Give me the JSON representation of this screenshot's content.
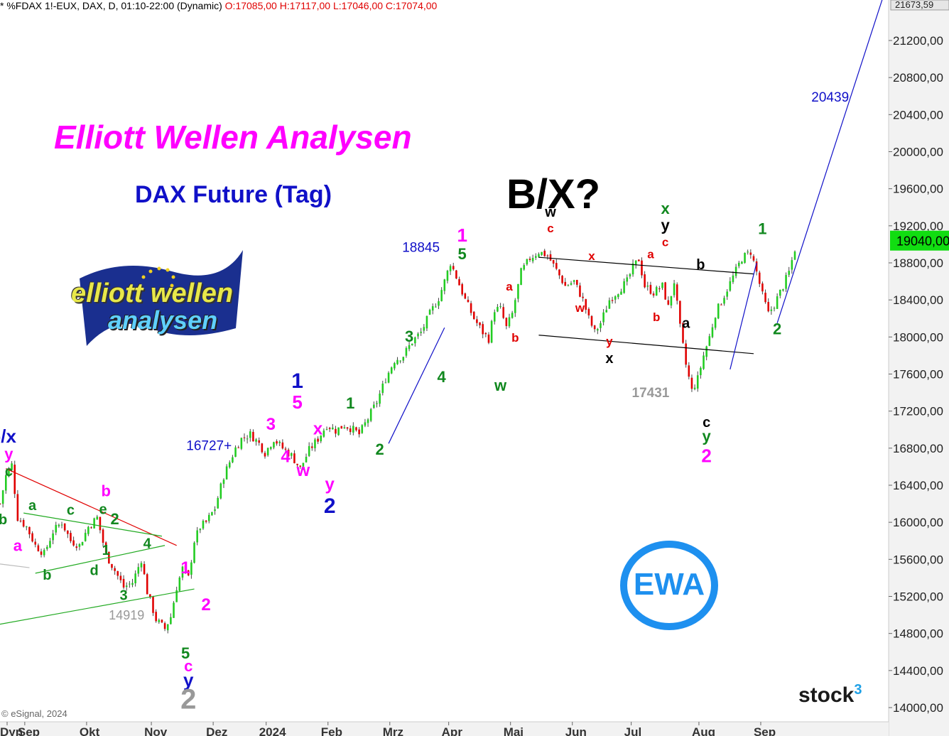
{
  "header": {
    "symbol_text": "* %FDAX 1!-EUX, DAX, D, 01:10-22:00 (Dynamic)",
    "ohlc_text": "O:17085,00 H:17117,00 L:17046,00 C:17074,00"
  },
  "title": "Elliott Wellen Analysen",
  "subtitle": "DAX Future (Tag)",
  "big_label": "B/X?",
  "logo": {
    "line1": "elliott wellen",
    "line2": "analysen"
  },
  "badge": {
    "text": "EWA",
    "color": "#1e90ef"
  },
  "brand": {
    "name": "stock",
    "sup": "3"
  },
  "copyright": "© eSignal, 2024",
  "colors": {
    "up": "#22cc22",
    "down": "#e00000",
    "price_tag_bg": "#11dd11",
    "pink": "#ff00ff",
    "green": "#11881f",
    "blue": "#1010c8",
    "red": "#e00000",
    "gray": "#999999",
    "black": "#000000"
  },
  "chart_data": {
    "type": "candlestick",
    "title": "DAX Future (Tag)",
    "y_axis": {
      "min": 14000,
      "max": 21800,
      "ticks": [
        14000,
        14400,
        14800,
        15200,
        15600,
        16000,
        16400,
        16800,
        17200,
        17600,
        18000,
        18400,
        18800,
        19200,
        19600,
        20000,
        20400,
        20800,
        21200
      ],
      "tick_labels": [
        "14000,00",
        "14400,00",
        "14800,00",
        "15200,00",
        "15600,00",
        "16000,00",
        "16400,00",
        "16800,00",
        "17200,00",
        "17600,00",
        "18000,00",
        "18400,00",
        "18800,00",
        "19200,00",
        "19600,00",
        "20000,00",
        "20400,00",
        "20800,00",
        "21200,00"
      ],
      "top_label": {
        "value": 21673.59,
        "text": "21673,59"
      },
      "last_price": {
        "value": 19040,
        "text": "19040,00"
      }
    },
    "x_axis": {
      "months": [
        {
          "label": "Dyn",
          "t": 0
        },
        {
          "label": "Sep",
          "t": 6
        },
        {
          "label": "Okt",
          "t": 27
        },
        {
          "label": "Nov",
          "t": 49
        },
        {
          "label": "Dez",
          "t": 70
        },
        {
          "label": "2024",
          "t": 88
        },
        {
          "label": "Feb",
          "t": 109
        },
        {
          "label": "Mrz",
          "t": 130
        },
        {
          "label": "Apr",
          "t": 150
        },
        {
          "label": "Mai",
          "t": 171
        },
        {
          "label": "Jun",
          "t": 192
        },
        {
          "label": "Jul",
          "t": 212
        },
        {
          "label": "Aug",
          "t": 235
        },
        {
          "label": "Sep",
          "t": 256
        }
      ]
    },
    "price_path": [
      [
        0,
        16200
      ],
      [
        2,
        16500
      ],
      [
        4,
        16620
      ],
      [
        6,
        16050
      ],
      [
        9,
        15950
      ],
      [
        12,
        15750
      ],
      [
        15,
        15660
      ],
      [
        18,
        15900
      ],
      [
        21,
        16000
      ],
      [
        24,
        15800
      ],
      [
        27,
        15750
      ],
      [
        30,
        15950
      ],
      [
        33,
        16050
      ],
      [
        36,
        15650
      ],
      [
        39,
        15480
      ],
      [
        42,
        15300
      ],
      [
        45,
        15350
      ],
      [
        48,
        15600
      ],
      [
        50,
        15250
      ],
      [
        53,
        14950
      ],
      [
        56,
        14850
      ],
      [
        58,
        14980
      ],
      [
        60,
        15300
      ],
      [
        62,
        15500
      ],
      [
        64,
        15400
      ],
      [
        66,
        15800
      ],
      [
        68,
        15950
      ],
      [
        70,
        16000
      ],
      [
        73,
        16150
      ],
      [
        76,
        16500
      ],
      [
        78,
        16650
      ],
      [
        80,
        16800
      ],
      [
        82,
        16900
      ],
      [
        85,
        16950
      ],
      [
        88,
        16850
      ],
      [
        90,
        16750
      ],
      [
        93,
        16900
      ],
      [
        96,
        16800
      ],
      [
        99,
        16720
      ],
      [
        102,
        16580
      ],
      [
        105,
        16780
      ],
      [
        108,
        16900
      ],
      [
        111,
        17050
      ],
      [
        114,
        16990
      ],
      [
        117,
        17050
      ],
      [
        120,
        17000
      ],
      [
        122,
        16950
      ],
      [
        125,
        17120
      ],
      [
        128,
        17300
      ],
      [
        131,
        17550
      ],
      [
        134,
        17750
      ],
      [
        137,
        17800
      ],
      [
        140,
        17950
      ],
      [
        143,
        18050
      ],
      [
        146,
        18250
      ],
      [
        149,
        18420
      ],
      [
        151,
        18600
      ],
      [
        153,
        18800
      ],
      [
        155,
        18650
      ],
      [
        158,
        18400
      ],
      [
        161,
        18200
      ],
      [
        164,
        18050
      ],
      [
        166,
        17980
      ],
      [
        168,
        18300
      ],
      [
        170,
        18300
      ],
      [
        172,
        18100
      ],
      [
        174,
        18250
      ],
      [
        177,
        18700
      ],
      [
        180,
        18850
      ],
      [
        183,
        18920
      ],
      [
        186,
        18880
      ],
      [
        189,
        18720
      ],
      [
        192,
        18550
      ],
      [
        195,
        18600
      ],
      [
        198,
        18400
      ],
      [
        200,
        18200
      ],
      [
        202,
        18050
      ],
      [
        204,
        18150
      ],
      [
        207,
        18400
      ],
      [
        210,
        18500
      ],
      [
        213,
        18600
      ],
      [
        215,
        18750
      ],
      [
        217,
        18840
      ],
      [
        219,
        18550
      ],
      [
        222,
        18480
      ],
      [
        225,
        18550
      ],
      [
        227,
        18320
      ],
      [
        229,
        18600
      ],
      [
        231,
        18100
      ],
      [
        233,
        17700
      ],
      [
        235,
        17420
      ],
      [
        237,
        17550
      ],
      [
        239,
        17800
      ],
      [
        241,
        18000
      ],
      [
        243,
        18250
      ],
      [
        246,
        18450
      ],
      [
        249,
        18650
      ],
      [
        252,
        18850
      ],
      [
        255,
        18920
      ],
      [
        257,
        18700
      ],
      [
        259,
        18450
      ],
      [
        261,
        18250
      ],
      [
        263,
        18350
      ],
      [
        266,
        18550
      ],
      [
        268,
        18700
      ],
      [
        270,
        18950
      ]
    ],
    "trendlines": [
      {
        "t1": 2,
        "p1": 16580,
        "t2": 60,
        "p2": 15750,
        "color": "#e00000"
      },
      {
        "t1": 8,
        "p1": 16100,
        "t2": 55,
        "p2": 15850,
        "color": "#22aa22"
      },
      {
        "t1": 12,
        "p1": 15450,
        "t2": 56,
        "p2": 15750,
        "color": "#22aa22"
      },
      {
        "t1": 0,
        "p1": 14900,
        "t2": 66,
        "p2": 15280,
        "color": "#22aa22"
      },
      {
        "t1": 0,
        "p1": 15550,
        "t2": 10,
        "p2": 15510,
        "color": "#bbbbbb"
      },
      {
        "t1": 132,
        "p1": 16850,
        "t2": 151,
        "p2": 18100,
        "color": "#1010c8"
      },
      {
        "t1": 183,
        "p1": 18860,
        "t2": 256,
        "p2": 18680,
        "color": "#000000"
      },
      {
        "t1": 183,
        "p1": 18020,
        "t2": 256,
        "p2": 17820,
        "color": "#000000"
      },
      {
        "t1": 248,
        "p1": 17650,
        "t2": 257,
        "p2": 18800,
        "color": "#1010c8"
      },
      {
        "t1": 264,
        "p1": 18150,
        "t2": 300,
        "p2": 21673.59,
        "color": "#1010c8"
      }
    ],
    "annotations": [
      {
        "text": "b/x",
        "t": 1,
        "p": 16860,
        "color": "#1010c8",
        "size": 26
      },
      {
        "text": "y",
        "t": 3,
        "p": 16680,
        "color": "#ff00ff",
        "size": 22
      },
      {
        "text": "c",
        "t": 3,
        "p": 16500,
        "color": "#11881f",
        "size": 20
      },
      {
        "text": "b",
        "t": 1,
        "p": 15980,
        "color": "#11881f",
        "size": 20
      },
      {
        "text": "a",
        "t": 6,
        "p": 15690,
        "color": "#ff00ff",
        "size": 22
      },
      {
        "text": "a",
        "t": 11,
        "p": 16130,
        "color": "#11881f",
        "size": 20
      },
      {
        "text": "b",
        "t": 16,
        "p": 15380,
        "color": "#11881f",
        "size": 20
      },
      {
        "text": "c",
        "t": 24,
        "p": 16080,
        "color": "#11881f",
        "size": 20
      },
      {
        "text": "d",
        "t": 32,
        "p": 15430,
        "color": "#11881f",
        "size": 20
      },
      {
        "text": "b",
        "t": 36,
        "p": 16280,
        "color": "#ff00ff",
        "size": 22
      },
      {
        "text": "e",
        "t": 35,
        "p": 16090,
        "color": "#11881f",
        "size": 20
      },
      {
        "text": "2",
        "t": 39,
        "p": 15980,
        "color": "#11881f",
        "size": 22
      },
      {
        "text": "1",
        "t": 36,
        "p": 15650,
        "color": "#11881f",
        "size": 20
      },
      {
        "text": "4",
        "t": 50,
        "p": 15720,
        "color": "#11881f",
        "size": 20
      },
      {
        "text": "3",
        "t": 42,
        "p": 15160,
        "color": "#11881f",
        "size": 20
      },
      {
        "text": "14919",
        "t": 43,
        "p": 14950,
        "color": "#999999",
        "size": 18,
        "bold": false
      },
      {
        "text": "1",
        "t": 63,
        "p": 15450,
        "color": "#ff00ff",
        "size": 24
      },
      {
        "text": "2",
        "t": 70,
        "p": 15050,
        "color": "#ff00ff",
        "size": 24
      },
      {
        "text": "5",
        "t": 63,
        "p": 14530,
        "color": "#11881f",
        "size": 22
      },
      {
        "text": "c",
        "t": 64,
        "p": 14390,
        "color": "#ff00ff",
        "size": 22
      },
      {
        "text": "y",
        "t": 64,
        "p": 14230,
        "color": "#1010c8",
        "size": 26
      },
      {
        "text": "2",
        "t": 64,
        "p": 13990,
        "color": "#999999",
        "size": 40
      },
      {
        "text": "16727+",
        "t": 71,
        "p": 16780,
        "color": "#1010c8",
        "size": 19,
        "bold": false
      },
      {
        "text": "3",
        "t": 92,
        "p": 17000,
        "color": "#ff00ff",
        "size": 24
      },
      {
        "text": "4",
        "t": 97,
        "p": 16650,
        "color": "#ff00ff",
        "size": 24
      },
      {
        "text": "1",
        "t": 101,
        "p": 17450,
        "color": "#1010c8",
        "size": 30
      },
      {
        "text": "5",
        "t": 101,
        "p": 17230,
        "color": "#ff00ff",
        "size": 26
      },
      {
        "text": "w",
        "t": 103,
        "p": 16500,
        "color": "#ff00ff",
        "size": 24
      },
      {
        "text": "x",
        "t": 108,
        "p": 16950,
        "color": "#ff00ff",
        "size": 24
      },
      {
        "text": "y",
        "t": 112,
        "p": 16350,
        "color": "#ff00ff",
        "size": 24
      },
      {
        "text": "2",
        "t": 112,
        "p": 16100,
        "color": "#1010c8",
        "size": 30
      },
      {
        "text": "1",
        "t": 119,
        "p": 17230,
        "color": "#11881f",
        "size": 22
      },
      {
        "text": "2",
        "t": 129,
        "p": 16730,
        "color": "#11881f",
        "size": 22
      },
      {
        "text": "3",
        "t": 139,
        "p": 17950,
        "color": "#11881f",
        "size": 22
      },
      {
        "text": "4",
        "t": 150,
        "p": 17510,
        "color": "#11881f",
        "size": 22
      },
      {
        "text": "18845",
        "t": 143,
        "p": 18920,
        "color": "#1010c8",
        "size": 19,
        "bold": false
      },
      {
        "text": "1",
        "t": 157,
        "p": 19030,
        "color": "#ff00ff",
        "size": 26
      },
      {
        "text": "5",
        "t": 157,
        "p": 18840,
        "color": "#11881f",
        "size": 22
      },
      {
        "text": "a",
        "t": 173,
        "p": 18500,
        "color": "#e00000",
        "size": 17
      },
      {
        "text": "b",
        "t": 175,
        "p": 17950,
        "color": "#e00000",
        "size": 17
      },
      {
        "text": "w",
        "t": 170,
        "p": 17420,
        "color": "#11881f",
        "size": 22
      },
      {
        "text": "w",
        "t": 187,
        "p": 19300,
        "color": "#000000",
        "size": 20
      },
      {
        "text": "c",
        "t": 187,
        "p": 19130,
        "color": "#e00000",
        "size": 17
      },
      {
        "text": "x",
        "t": 201,
        "p": 18830,
        "color": "#e00000",
        "size": 17
      },
      {
        "text": "w",
        "t": 197,
        "p": 18270,
        "color": "#e00000",
        "size": 17
      },
      {
        "text": "y",
        "t": 207,
        "p": 17910,
        "color": "#e00000",
        "size": 17
      },
      {
        "text": "x",
        "t": 207,
        "p": 17720,
        "color": "#000000",
        "size": 20
      },
      {
        "text": "a",
        "t": 221,
        "p": 18850,
        "color": "#e00000",
        "size": 17
      },
      {
        "text": "b",
        "t": 223,
        "p": 18170,
        "color": "#e00000",
        "size": 17
      },
      {
        "text": "x",
        "t": 226,
        "p": 19330,
        "color": "#11881f",
        "size": 22
      },
      {
        "text": "y",
        "t": 226,
        "p": 19150,
        "color": "#000000",
        "size": 22
      },
      {
        "text": "c",
        "t": 226,
        "p": 18980,
        "color": "#e00000",
        "size": 17
      },
      {
        "text": "b",
        "t": 238,
        "p": 18730,
        "color": "#000000",
        "size": 20
      },
      {
        "text": "a",
        "t": 233,
        "p": 18100,
        "color": "#000000",
        "size": 20
      },
      {
        "text": "17431",
        "t": 221,
        "p": 17350,
        "color": "#999999",
        "size": 19
      },
      {
        "text": "c",
        "t": 240,
        "p": 17030,
        "color": "#000000",
        "size": 20
      },
      {
        "text": "y",
        "t": 240,
        "p": 16870,
        "color": "#11881f",
        "size": 22
      },
      {
        "text": "2",
        "t": 240,
        "p": 16650,
        "color": "#ff00ff",
        "size": 26
      },
      {
        "text": "1",
        "t": 259,
        "p": 19110,
        "color": "#11881f",
        "size": 22
      },
      {
        "text": "2",
        "t": 264,
        "p": 18030,
        "color": "#11881f",
        "size": 22
      },
      {
        "text": "20439",
        "t": 282,
        "p": 20540,
        "color": "#1010c8",
        "size": 19,
        "bold": false
      }
    ]
  }
}
